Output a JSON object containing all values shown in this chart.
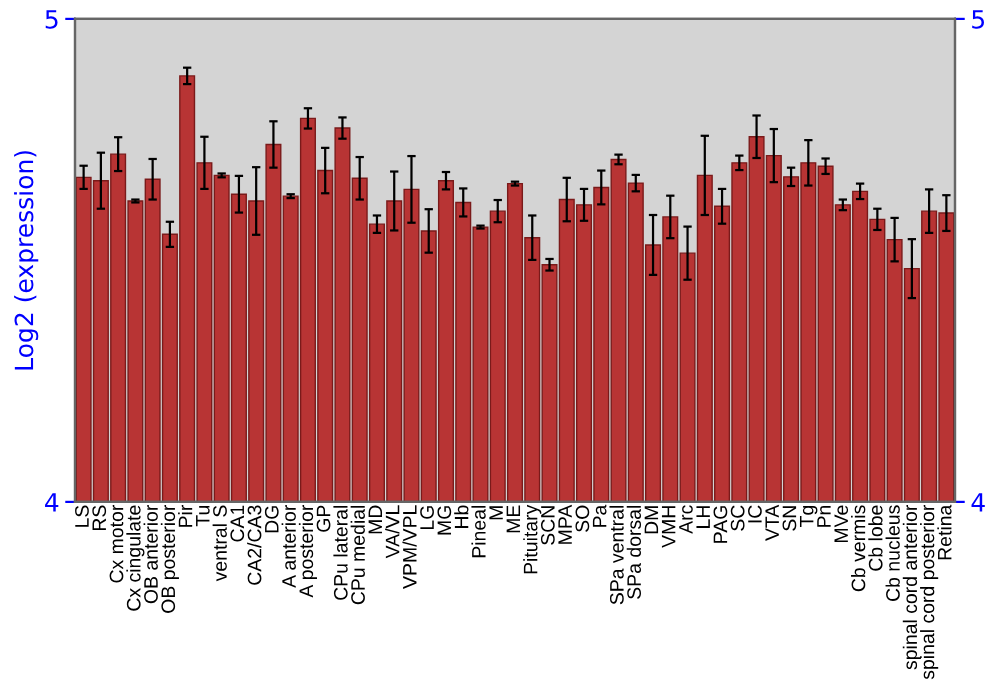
{
  "chart_data": {
    "type": "bar",
    "ylabel": "Log2 (expression)",
    "categories": [
      "LS",
      "RS",
      "Cx motor",
      "Cx cingulate",
      "OB anterior",
      "OB posterior",
      "Pir",
      "Tu",
      "ventral S",
      "CA1",
      "CA2/CA3",
      "DG",
      "A anterior",
      "A posterior",
      "GP",
      "CPu lateral",
      "CPu medial",
      "MD",
      "VA/VL",
      "VPM/VPL",
      "LG",
      "MG",
      "Hb",
      "Pineal",
      "M",
      "ME",
      "Pituitary",
      "SCN",
      "MPA",
      "SO",
      "Pa",
      "SPa ventral",
      "SPa dorsal",
      "DM",
      "VMH",
      "Arc",
      "LH",
      "PAG",
      "SC",
      "IC",
      "VTA",
      "SN",
      "Tg",
      "Pn",
      "MVe",
      "Cb vermis",
      "Cb lobe",
      "Cb nucleus",
      "spinal cord anterior",
      "spinal cord posterior",
      "Retina"
    ],
    "values": [
      4.672,
      4.665,
      4.72,
      4.623,
      4.668,
      4.554,
      4.882,
      4.702,
      4.676,
      4.637,
      4.623,
      4.74,
      4.633,
      4.794,
      4.686,
      4.774,
      4.67,
      4.575,
      4.623,
      4.647,
      4.561,
      4.665,
      4.62,
      4.569,
      4.602,
      4.659,
      4.547,
      4.491,
      4.626,
      4.615,
      4.651,
      4.709,
      4.66,
      4.532,
      4.59,
      4.515,
      4.676,
      4.612,
      4.702,
      4.756,
      4.717,
      4.673,
      4.702,
      4.695,
      4.615,
      4.643,
      4.585,
      4.543,
      4.483,
      4.602,
      4.598
    ],
    "errors": [
      0.024,
      0.058,
      0.035,
      0.003,
      0.042,
      0.026,
      0.017,
      0.054,
      0.004,
      0.038,
      0.07,
      0.048,
      0.004,
      0.021,
      0.047,
      0.022,
      0.044,
      0.018,
      0.061,
      0.069,
      0.045,
      0.018,
      0.029,
      0.003,
      0.023,
      0.004,
      0.046,
      0.012,
      0.045,
      0.033,
      0.035,
      0.01,
      0.017,
      0.062,
      0.044,
      0.055,
      0.082,
      0.036,
      0.015,
      0.044,
      0.055,
      0.019,
      0.047,
      0.016,
      0.011,
      0.016,
      0.022,
      0.045,
      0.061,
      0.045,
      0.037
    ],
    "color": "#b83434",
    "ylim": [
      4,
      5
    ],
    "yticks": [
      4,
      5
    ],
    "y2lim": [
      4,
      5
    ],
    "y2ticks": [
      4,
      5
    ]
  }
}
